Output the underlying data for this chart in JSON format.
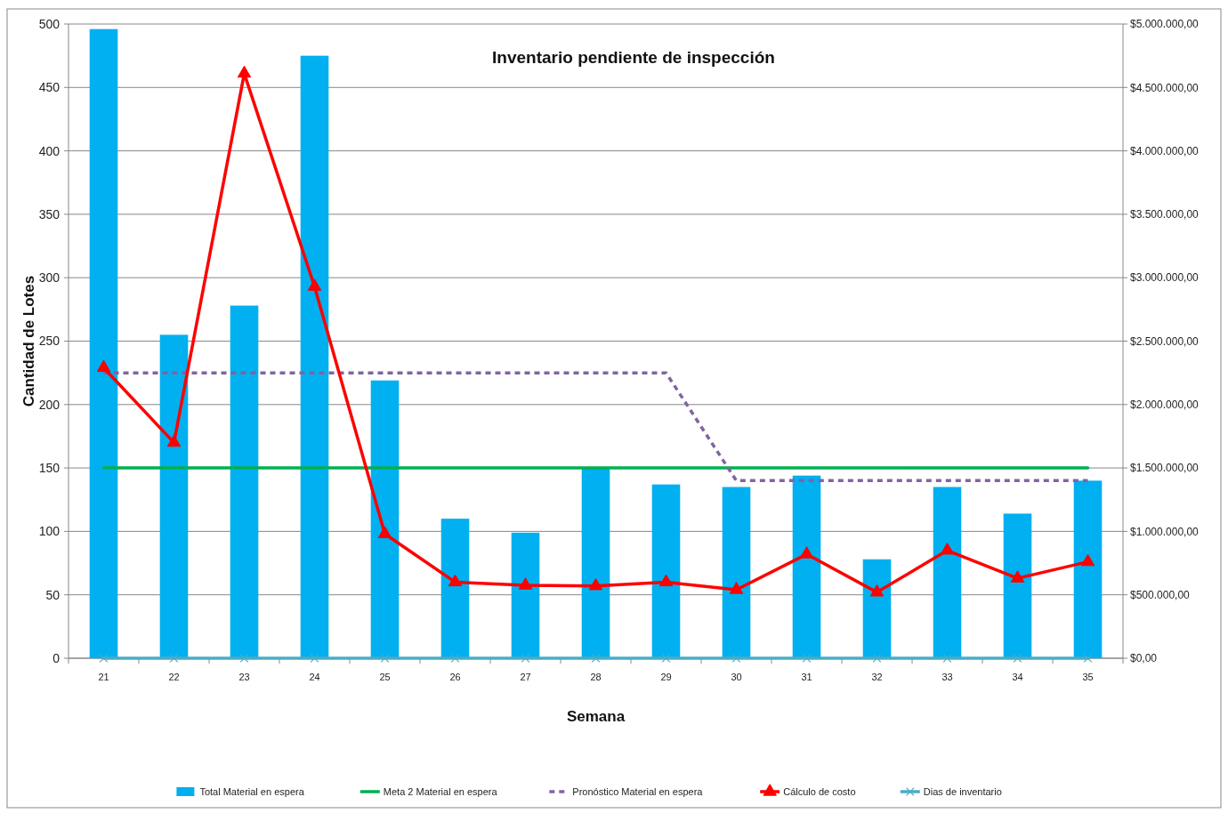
{
  "chart_data": {
    "type": "bar",
    "title": "Inventario pendiente de inspección",
    "xlabel": "Semana",
    "ylabel": "Cantidad de Lotes",
    "categories": [
      "21",
      "22",
      "23",
      "24",
      "25",
      "26",
      "27",
      "28",
      "29",
      "30",
      "31",
      "32",
      "33",
      "34",
      "35"
    ],
    "series": [
      {
        "name": "Total Material en espera",
        "color": "#00b0f0",
        "values": [
          496,
          255,
          278,
          475,
          219,
          110,
          99,
          150,
          137,
          135,
          144,
          78,
          135,
          114,
          140
        ]
      },
      {
        "name": "Meta 2 Material en espera",
        "type": "line",
        "color": "#00b050",
        "line_style": "solid",
        "marker": "none",
        "values": [
          150,
          150,
          150,
          150,
          150,
          150,
          150,
          150,
          150,
          150,
          150,
          150,
          150,
          150,
          150
        ]
      },
      {
        "name": "Pronóstico Material en espera",
        "type": "line",
        "color": "#8064a2",
        "line_style": "dotted",
        "marker": "none",
        "values": [
          225,
          225,
          225,
          225,
          225,
          225,
          225,
          225,
          225,
          140,
          140,
          140,
          140,
          140,
          140
        ]
      },
      {
        "name": "Cálculo de costo",
        "type": "line",
        "color": "#ff0000",
        "line_style": "solid",
        "marker": "triangle",
        "axis": "y2",
        "values": [
          2290000,
          1700000,
          4610000,
          2930000,
          980000,
          600000,
          575000,
          570000,
          600000,
          540000,
          820000,
          520000,
          850000,
          630000,
          760000
        ]
      },
      {
        "name": "Dias de inventario",
        "type": "line",
        "color": "#4bacc6",
        "line_style": "solid",
        "marker": "cross",
        "values": [
          0,
          0,
          0,
          0,
          0,
          0,
          0,
          0,
          0,
          0,
          0,
          0,
          0,
          0,
          0
        ]
      }
    ],
    "ylim": [
      0,
      500
    ],
    "yticks": [
      0,
      50,
      100,
      150,
      200,
      250,
      300,
      350,
      400,
      450,
      500
    ],
    "y2lim": [
      0,
      5000000
    ],
    "y2ticks": [
      {
        "value": 0,
        "label": "$0,00"
      },
      {
        "value": 500000,
        "label": "$500.000,00"
      },
      {
        "value": 1000000,
        "label": "$1.000.000,00"
      },
      {
        "value": 1500000,
        "label": "$1.500.000,00"
      },
      {
        "value": 2000000,
        "label": "$2.000.000,00"
      },
      {
        "value": 2500000,
        "label": "$2.500.000,00"
      },
      {
        "value": 3000000,
        "label": "$3.000.000,00"
      },
      {
        "value": 3500000,
        "label": "$3.500.000,00"
      },
      {
        "value": 4000000,
        "label": "$4.000.000,00"
      },
      {
        "value": 4500000,
        "label": "$4.500.000,00"
      },
      {
        "value": 5000000,
        "label": "$5.000.000,00"
      }
    ],
    "grid": "y",
    "legend": "bottom"
  }
}
